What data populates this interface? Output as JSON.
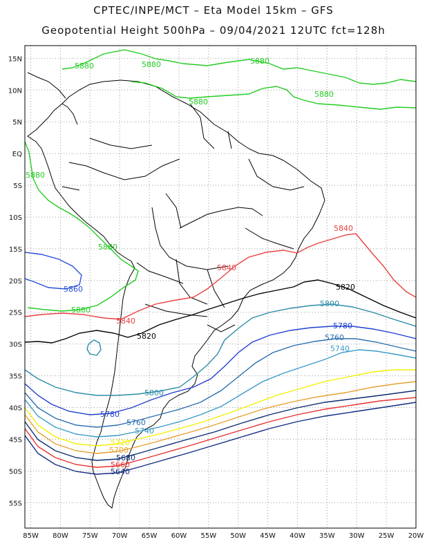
{
  "title": {
    "line1": "CPTEC/INPE/MCT –  Eta Model 15km – GFS",
    "line2": "Geopotential Height 500hPa – 09/04/2021 12UTC fct=128h"
  },
  "axes": {
    "lat_labels": [
      "15N",
      "10N",
      "5N",
      "EQ",
      "5S",
      "10S",
      "15S",
      "20S",
      "25S",
      "30S",
      "35S",
      "40S",
      "45S",
      "50S",
      "55S"
    ],
    "lon_labels": [
      "85W",
      "80W",
      "75W",
      "70W",
      "65W",
      "60W",
      "55W",
      "50W",
      "45W",
      "40W",
      "35W",
      "30W",
      "25W",
      "20W"
    ],
    "lat_range": [
      17,
      -59
    ],
    "lon_range": [
      -86,
      -20
    ],
    "grid": "dotted 5-degree"
  },
  "contours": [
    {
      "value": "5880",
      "color": "#22cc22"
    },
    {
      "value": "5860",
      "color": "#2a50d8"
    },
    {
      "value": "5840",
      "color": "#e84040"
    },
    {
      "value": "5820",
      "color": "#000000"
    },
    {
      "value": "5800",
      "color": "#2a8aa8"
    },
    {
      "value": "5780",
      "color": "#1f3fd0"
    },
    {
      "value": "5760",
      "color": "#2a6fb0"
    },
    {
      "value": "5740",
      "color": "#3a9ac8"
    },
    {
      "value": "5720",
      "color": "#f2f000"
    },
    {
      "value": "5700",
      "color": "#e8a030"
    },
    {
      "value": "5680",
      "color": "#0a2a70"
    },
    {
      "value": "5660",
      "color": "#e83030"
    },
    {
      "value": "5640",
      "color": "#102a80"
    }
  ]
}
